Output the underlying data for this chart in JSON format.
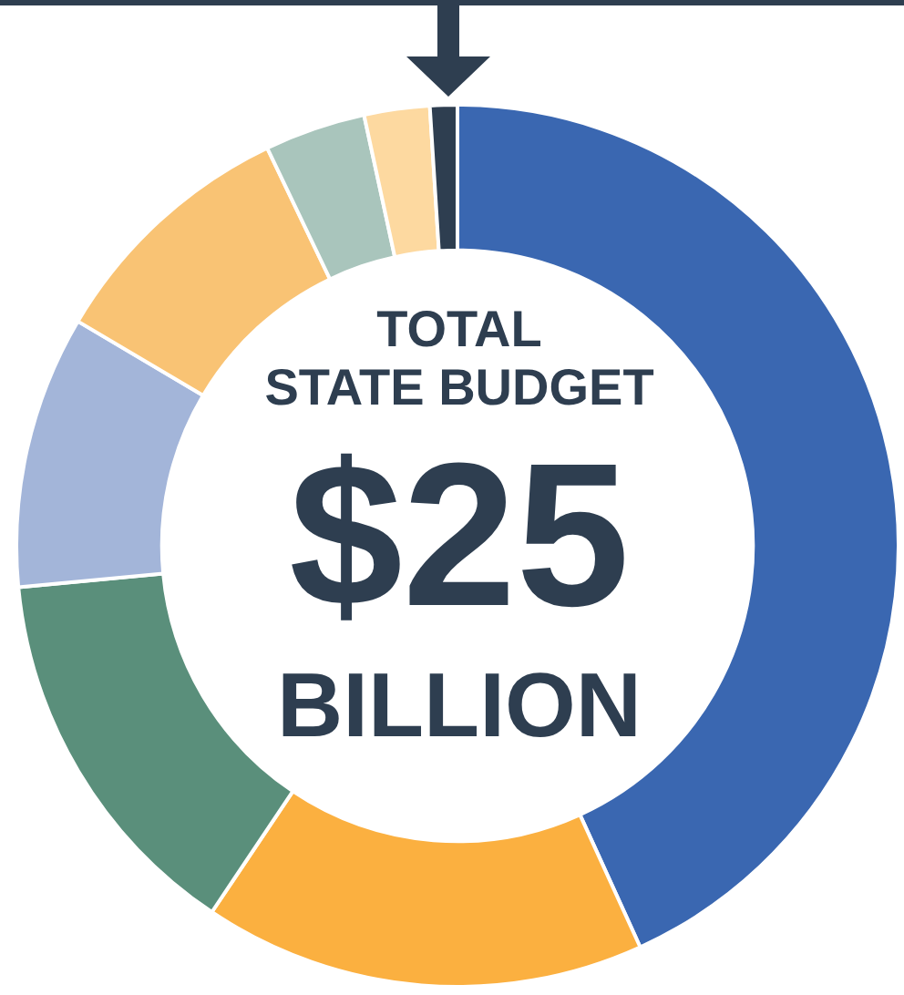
{
  "chart_data": {
    "type": "donut",
    "categories": [
      null,
      null,
      null,
      null,
      null,
      null,
      null,
      null
    ],
    "values": [
      43.2,
      16.2,
      14.1,
      10,
      9.4,
      3.7,
      2.4,
      1
    ],
    "colors": [
      "#3a67b1",
      "#fbb040",
      "#5a8f7b",
      "#a3b5d9",
      "#f9c374",
      "#a9c5bc",
      "#fdd9a0",
      "#2e3e50"
    ],
    "annotations": [
      "TOTAL",
      "STATE BUDGET",
      "$25",
      "BILLION"
    ]
  }
}
